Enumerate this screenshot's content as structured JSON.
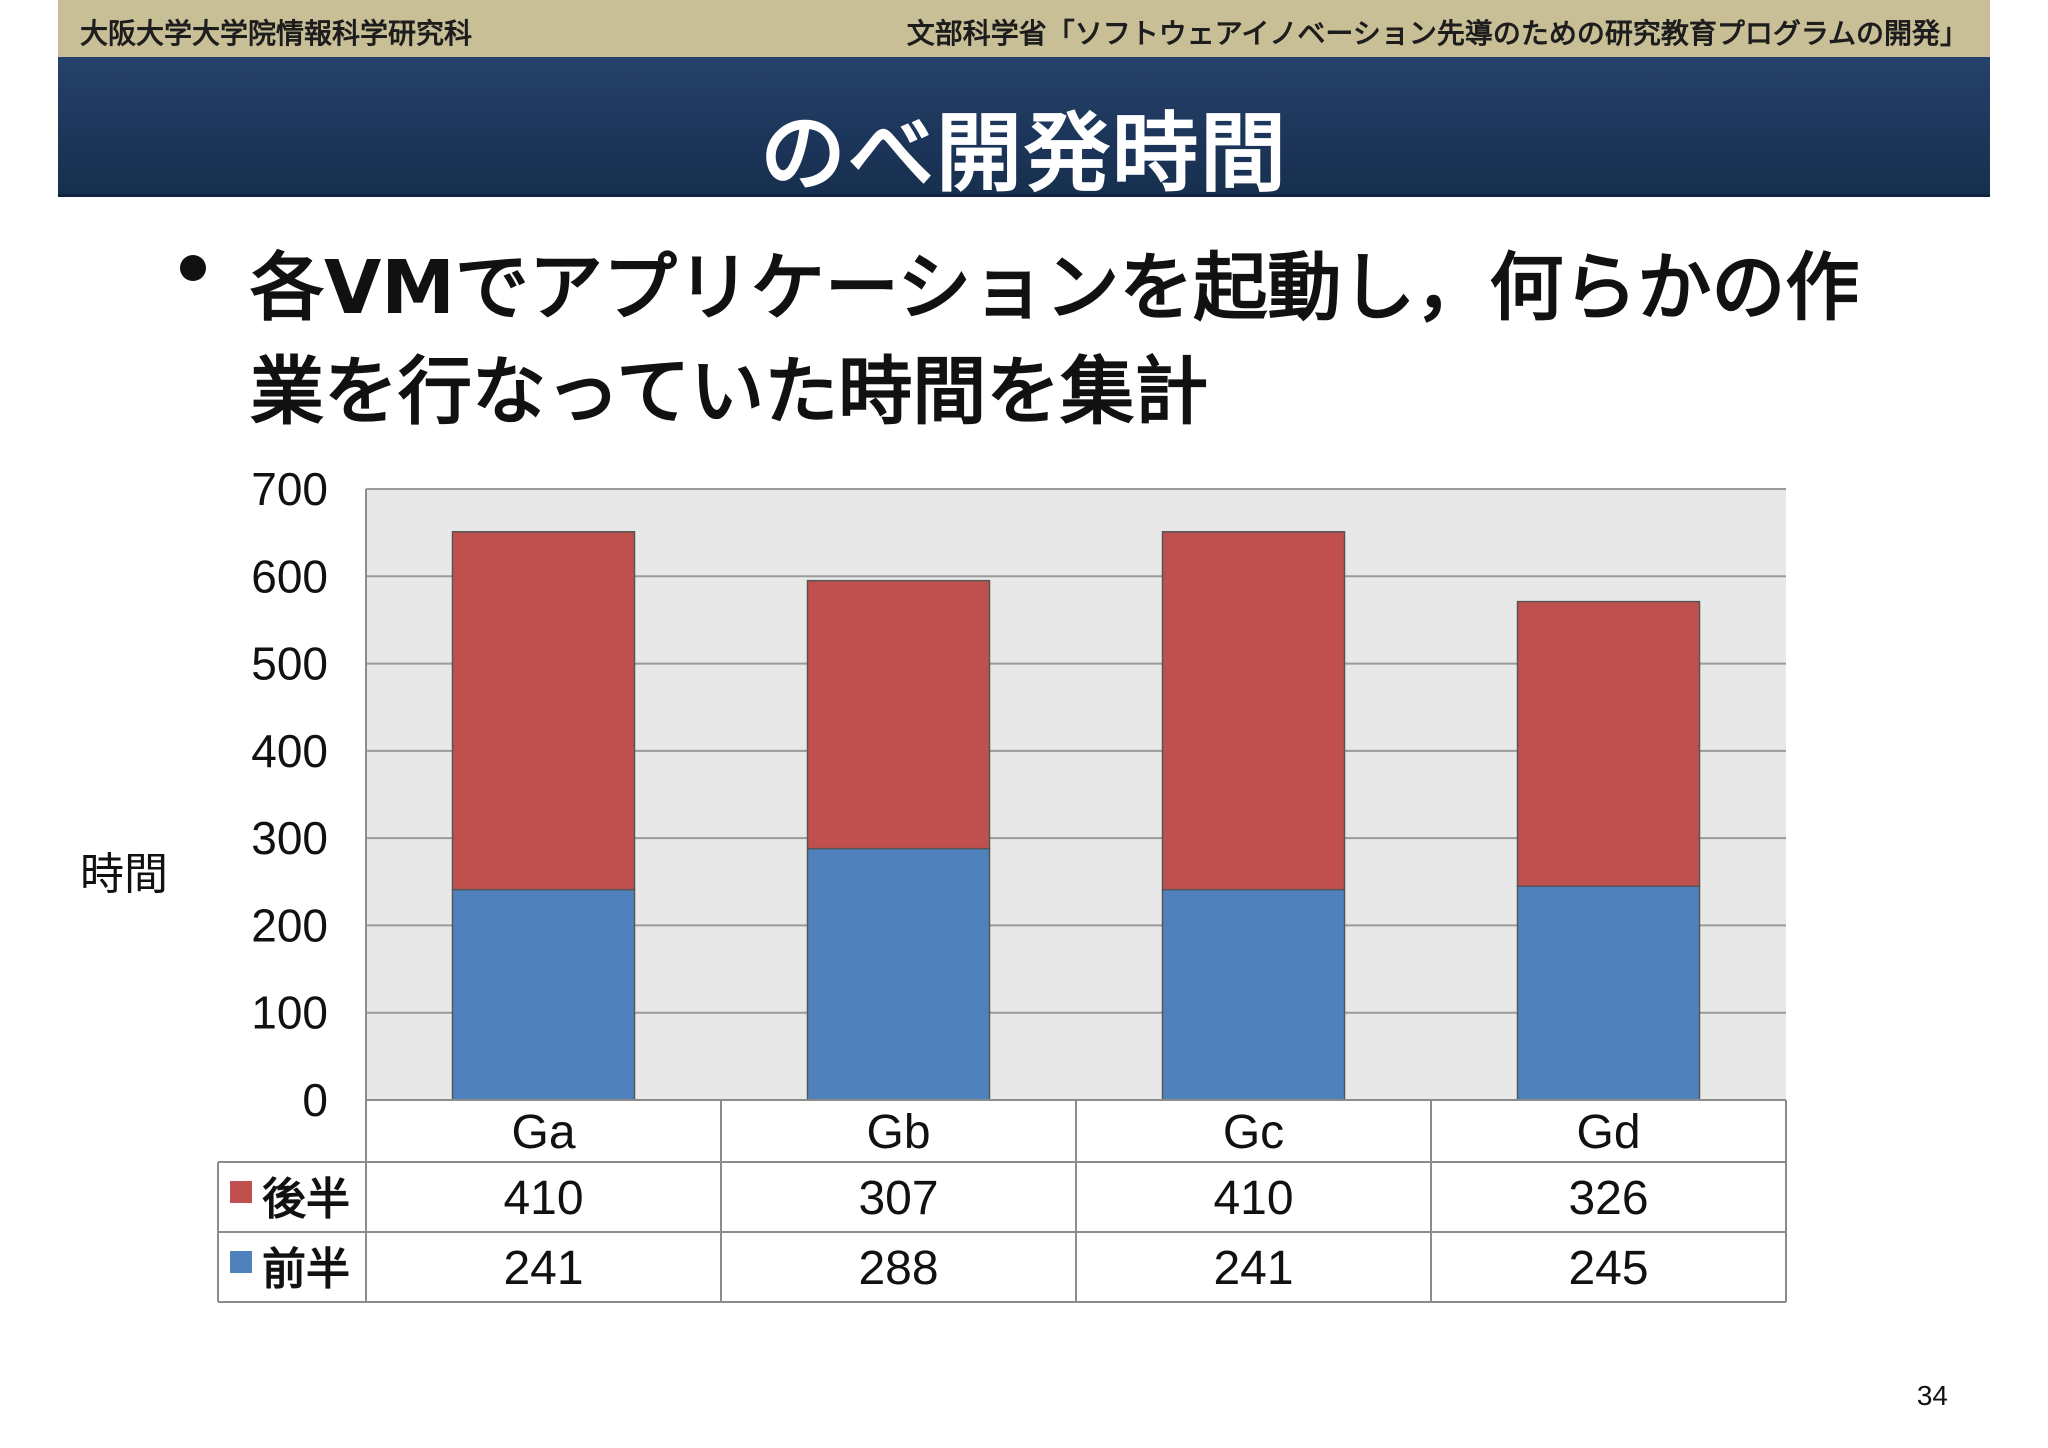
{
  "header": {
    "left": "大阪大学大学院情報科学研究科",
    "right": "文部科学省「ソフトウェアイノベーション先導のための研究教育プログラムの開発」"
  },
  "slide": {
    "title": "のべ開発時間",
    "bullet": "各VMでアプリケーションを起動し，何らかの作業を行なっていた時間を集計",
    "page_number": "34"
  },
  "chart_data": {
    "type": "bar",
    "stacked": true,
    "categories": [
      "Ga",
      "Gb",
      "Gc",
      "Gd"
    ],
    "series": [
      {
        "name": "前半",
        "values": [
          241,
          288,
          241,
          245
        ],
        "color": "#4f81bd"
      },
      {
        "name": "後半",
        "values": [
          410,
          307,
          410,
          326
        ],
        "color": "#c0504d"
      }
    ],
    "ylabel": "時間",
    "ylim": [
      0,
      700
    ],
    "yticks": [
      0,
      100,
      200,
      300,
      400,
      500,
      600,
      700
    ],
    "grid": true,
    "legend": "data-table"
  }
}
